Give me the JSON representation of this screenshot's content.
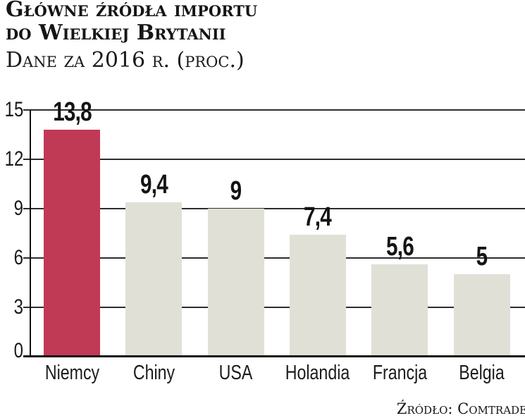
{
  "header": {
    "title_line1": "Główne źródła importu",
    "title_line2": "do Wielkiej Brytanii",
    "subtitle": "Dane za 2016 r. (proc.)"
  },
  "source": {
    "label": "Źródło: Comtrade"
  },
  "chart_data": {
    "type": "bar",
    "title": "Główne źródła importu do Wielkiej Brytanii",
    "subtitle": "Dane za 2016 r. (proc.)",
    "categories": [
      "Niemcy",
      "Chiny",
      "USA",
      "Holandia",
      "Francja",
      "Belgia"
    ],
    "values": [
      13.8,
      9.4,
      9,
      7.4,
      5.6,
      5
    ],
    "value_labels": [
      "13,8",
      "9,4",
      "9",
      "7,4",
      "5,6",
      "5"
    ],
    "xlabel": "",
    "ylabel": "",
    "ylim": [
      0,
      15
    ],
    "yticks": [
      0,
      3,
      6,
      9,
      12,
      15
    ],
    "grid": true,
    "legend": false,
    "highlight_index": 0,
    "colors": {
      "highlight_bar": "#c03a56",
      "default_bar": "#e0e0d7",
      "gridline": "#2d2d2d",
      "axis": "#111111",
      "text": "#161616"
    }
  }
}
